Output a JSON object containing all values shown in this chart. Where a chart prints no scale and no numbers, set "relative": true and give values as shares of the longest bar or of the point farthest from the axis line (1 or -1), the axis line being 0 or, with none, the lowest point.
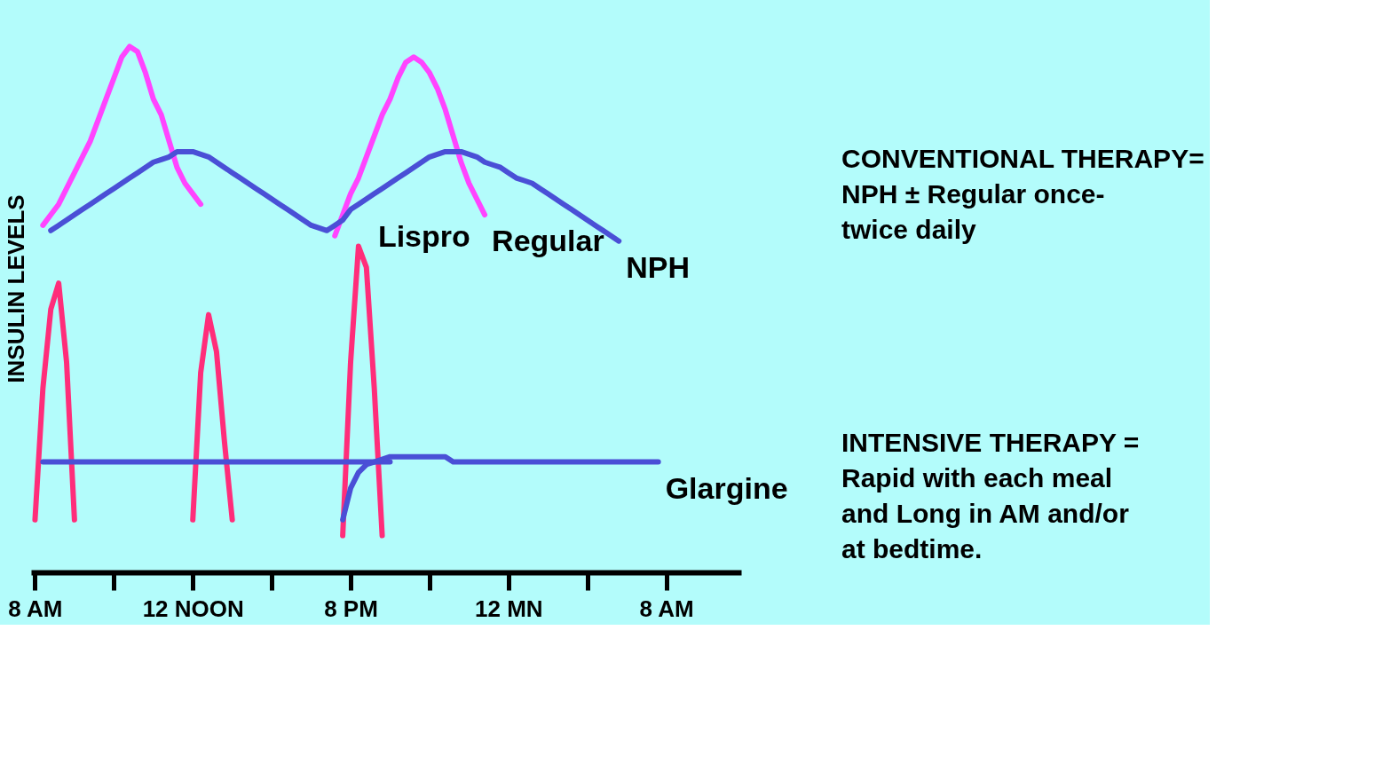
{
  "chart_data": {
    "type": "line",
    "relative": true,
    "ylabel": "INSULIN LEVELS",
    "categories": [
      "8 AM",
      null,
      null,
      null,
      null,
      null,
      null,
      null,
      null,
      null,
      null,
      null,
      null,
      null,
      null,
      null,
      null,
      null,
      null,
      null,
      "12 NOON",
      null,
      null,
      null,
      null,
      null,
      null,
      null,
      null,
      null,
      null,
      null,
      null,
      null,
      null,
      null,
      null,
      null,
      null,
      null,
      "8 PM",
      null,
      null,
      null,
      null,
      null,
      null,
      null,
      null,
      null,
      null,
      null,
      null,
      null,
      null,
      null,
      null,
      null,
      null,
      null,
      "12 MN",
      null,
      null,
      null,
      null,
      null,
      null,
      null,
      null,
      null,
      null,
      null,
      null,
      null,
      null,
      null,
      null,
      null,
      null,
      null,
      "8 AM",
      null,
      null,
      null,
      null,
      null,
      null,
      null,
      null,
      null
    ],
    "grid": false,
    "marker": "none",
    "line_style": "solid",
    "series": [
      {
        "name": "Regular",
        "color": "#ff44ff",
        "values": [
          null,
          0.66,
          0.68,
          0.7,
          0.73,
          0.76,
          0.79,
          0.82,
          0.86,
          0.9,
          0.94,
          0.98,
          1.0,
          0.99,
          0.95,
          0.9,
          0.87,
          0.82,
          0.77,
          0.74,
          0.72,
          0.7,
          null,
          null,
          null,
          null,
          null,
          null,
          null,
          null,
          null,
          null,
          null,
          null,
          null,
          null,
          null,
          null,
          0.64,
          0.68,
          0.72,
          0.75,
          0.79,
          0.83,
          0.87,
          0.9,
          0.94,
          0.97,
          0.98,
          0.97,
          0.95,
          0.92,
          0.88,
          0.83,
          0.78,
          0.74,
          0.71,
          0.68,
          null,
          null,
          null,
          null,
          null,
          null,
          null,
          null,
          null,
          null,
          null,
          null,
          null,
          null,
          null,
          null,
          null,
          null,
          null,
          null,
          null,
          null,
          null,
          null,
          null,
          null,
          null,
          null,
          null,
          null,
          null,
          null
        ]
      },
      {
        "name": "NPH",
        "color": "#4a4fd6",
        "values": [
          null,
          null,
          0.65,
          0.66,
          0.67,
          0.68,
          0.69,
          0.7,
          0.71,
          0.72,
          0.73,
          0.74,
          0.75,
          0.76,
          0.77,
          0.78,
          0.785,
          0.79,
          0.8,
          0.8,
          0.8,
          0.795,
          0.79,
          0.78,
          0.77,
          0.76,
          0.75,
          0.74,
          0.73,
          0.72,
          0.71,
          0.7,
          0.69,
          0.68,
          0.67,
          0.66,
          0.655,
          0.65,
          0.66,
          0.67,
          0.69,
          0.7,
          0.71,
          0.72,
          0.73,
          0.74,
          0.75,
          0.76,
          0.77,
          0.78,
          0.79,
          0.795,
          0.8,
          0.8,
          0.8,
          0.795,
          0.79,
          0.78,
          0.775,
          0.77,
          0.76,
          0.75,
          0.745,
          0.74,
          0.73,
          0.72,
          0.71,
          0.7,
          0.69,
          0.68,
          0.67,
          0.66,
          0.65,
          0.64,
          0.63,
          null,
          null,
          null,
          null,
          null,
          null,
          null,
          null,
          null,
          null,
          null,
          null,
          null,
          null,
          null
        ]
      },
      {
        "name": "Lispro",
        "color": "#ff2d7a",
        "values": [
          0.1,
          0.35,
          0.5,
          0.55,
          0.4,
          0.1,
          null,
          null,
          null,
          null,
          null,
          null,
          null,
          null,
          null,
          null,
          null,
          null,
          null,
          null,
          0.1,
          0.38,
          0.49,
          0.42,
          0.25,
          0.1,
          null,
          null,
          null,
          null,
          null,
          null,
          null,
          null,
          null,
          null,
          null,
          null,
          null,
          0.07,
          0.4,
          0.62,
          0.58,
          0.35,
          0.07,
          null,
          null,
          null,
          null,
          null,
          null,
          null,
          null,
          null,
          null,
          null,
          null,
          null,
          null,
          null,
          null,
          null,
          null,
          null,
          null,
          null,
          null,
          null,
          null,
          null,
          null,
          null,
          null,
          null,
          null,
          null,
          null,
          null,
          null,
          null,
          null,
          null,
          null,
          null,
          null,
          null,
          null,
          null,
          null,
          null
        ]
      },
      {
        "color": "#4a4fd6",
        "values": [
          null,
          0.21,
          0.21,
          0.21,
          0.21,
          0.21,
          0.21,
          0.21,
          0.21,
          0.21,
          0.21,
          0.21,
          0.21,
          0.21,
          0.21,
          0.21,
          0.21,
          0.21,
          0.21,
          0.21,
          0.21,
          0.21,
          0.21,
          0.21,
          0.21,
          0.21,
          0.21,
          0.21,
          0.21,
          0.21,
          0.21,
          0.21,
          0.21,
          0.21,
          0.21,
          0.21,
          0.21,
          0.21,
          0.21,
          0.21,
          0.21,
          0.21,
          0.21,
          0.21,
          0.21,
          0.21,
          null,
          null,
          null,
          null,
          null,
          null,
          null,
          null,
          null,
          null,
          null,
          null,
          null,
          null,
          null,
          null,
          null,
          null,
          null,
          null,
          null,
          null,
          null,
          null,
          null,
          null,
          null,
          null,
          null,
          null,
          null,
          null,
          null,
          null,
          null,
          null,
          null,
          null,
          null,
          null,
          null,
          null,
          null,
          null
        ]
      },
      {
        "name": "Glargine",
        "color": "#4a4fd6",
        "values": [
          null,
          null,
          null,
          null,
          null,
          null,
          null,
          null,
          null,
          null,
          null,
          null,
          null,
          null,
          null,
          null,
          null,
          null,
          null,
          null,
          null,
          null,
          null,
          null,
          null,
          null,
          null,
          null,
          null,
          null,
          null,
          null,
          null,
          null,
          null,
          null,
          null,
          null,
          null,
          0.1,
          0.16,
          0.19,
          0.205,
          0.21,
          0.215,
          0.22,
          0.22,
          0.22,
          0.22,
          0.22,
          0.22,
          0.22,
          0.22,
          0.21,
          0.21,
          0.21,
          0.21,
          0.21,
          0.21,
          0.21,
          0.21,
          0.21,
          0.21,
          0.21,
          0.21,
          0.21,
          0.21,
          0.21,
          0.21,
          0.21,
          0.21,
          0.21,
          0.21,
          0.21,
          0.21,
          0.21,
          0.21,
          0.21,
          0.21,
          0.21,
          null,
          null,
          null,
          null,
          null,
          null,
          null,
          null,
          null,
          null
        ]
      }
    ],
    "annotations": [
      "CONVENTIONAL THERAPY= NPH ± Regular once-twice daily",
      "INTENSIVE THERAPY = Rapid with each meal and Long in AM and/or at bedtime."
    ]
  }
}
